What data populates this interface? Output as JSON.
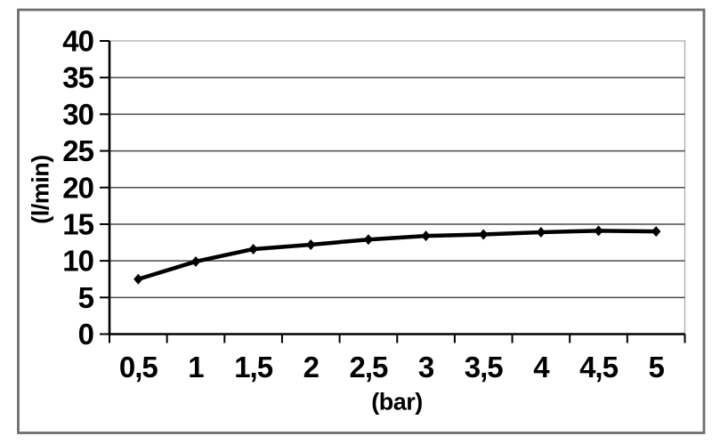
{
  "chart_data": {
    "type": "line",
    "title": "",
    "xlabel": "(bar)",
    "ylabel": "(l/min)",
    "x": [
      0.5,
      1,
      1.5,
      2,
      2.5,
      3,
      3.5,
      4,
      4.5,
      5
    ],
    "x_tick_labels": [
      "0,5",
      "1",
      "1,5",
      "2",
      "2,5",
      "3",
      "3,5",
      "4",
      "4,5",
      "5"
    ],
    "y_ticks": [
      0,
      5,
      10,
      15,
      20,
      25,
      30,
      35,
      40
    ],
    "y_tick_labels": [
      "0",
      "5",
      "10",
      "15",
      "20",
      "25",
      "30",
      "35",
      "40"
    ],
    "ylim": [
      0,
      40
    ],
    "grid": true,
    "legend": false,
    "series": [
      {
        "values": [
          7.5,
          9.9,
          11.6,
          12.2,
          12.9,
          13.4,
          13.6,
          13.9,
          14.1,
          14.0
        ],
        "color": "#000000",
        "marker": "diamond"
      }
    ]
  },
  "colors": {
    "background": "#ffffff",
    "outer_border": "#6e6e6e",
    "plot_border": "#b0b0b0",
    "gridline": "#4a4a4a",
    "axis": "#000000",
    "text": "#000000",
    "series": "#000000"
  }
}
